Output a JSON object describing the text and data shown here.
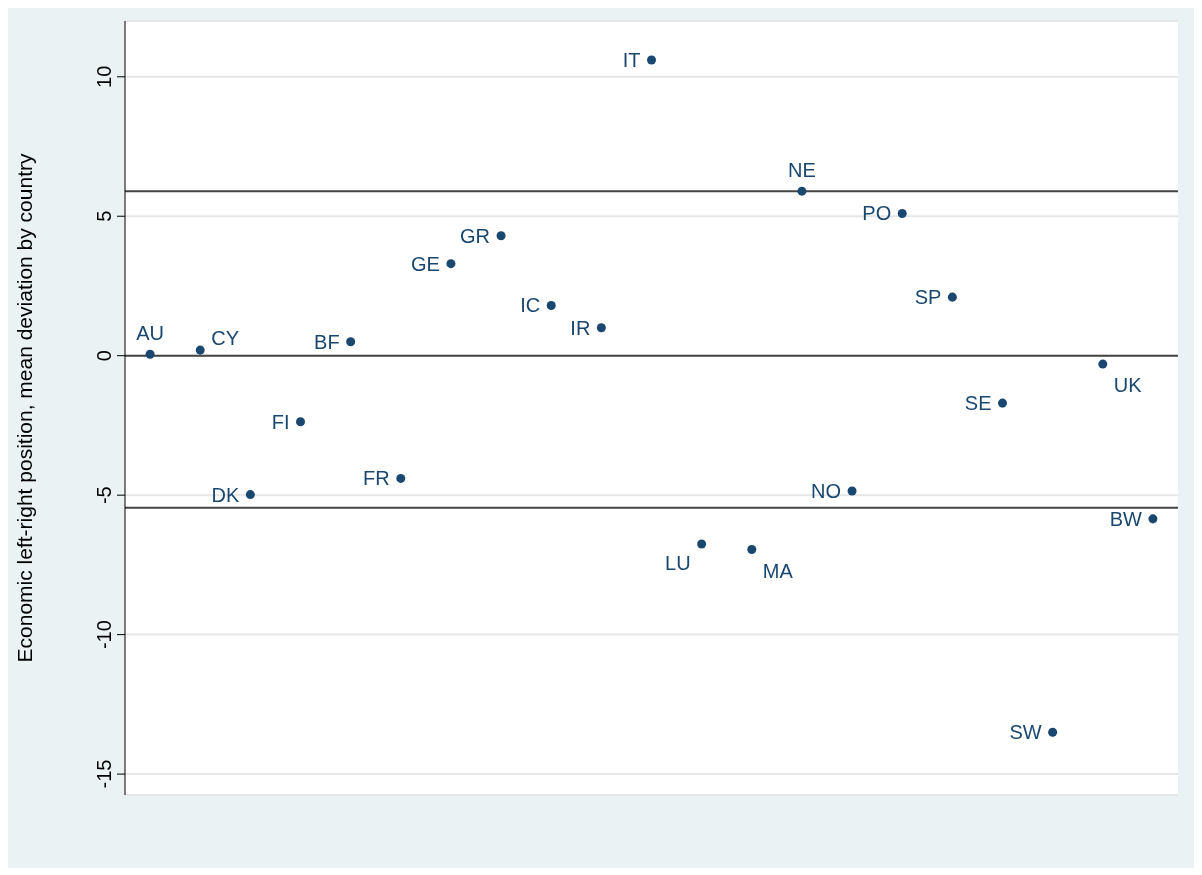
{
  "chart_data": {
    "type": "scatter",
    "ylabel": "Economic left-right position, mean deviation by country",
    "categories": [
      null,
      null,
      null,
      null,
      null,
      null,
      null,
      null,
      null,
      null,
      null,
      null,
      null,
      null,
      null,
      null,
      null,
      null,
      null,
      null,
      null
    ],
    "series": [
      {
        "color": "#1a476f",
        "values": [
          0.05,
          0.2,
          -4.98,
          -2.37,
          0.5,
          -4.4,
          3.3,
          4.3,
          1.8,
          1.0,
          10.6,
          -6.75,
          -6.95,
          5.9,
          -4.85,
          5.1,
          2.1,
          -1.7,
          -13.5,
          -0.3,
          -5.85
        ],
        "value_labels": [
          "AU",
          "CY",
          "DK",
          "FI",
          "BF",
          "FR",
          "GE",
          "GR",
          "IC",
          "IR",
          "IT",
          "LU",
          "MA",
          "NE",
          "NO",
          "PO",
          "SP",
          "SE",
          "SW",
          "UK",
          "BW"
        ]
      }
    ],
    "ylim": [
      -15.75,
      12
    ],
    "yticks": [
      -15,
      -10,
      -5,
      0,
      5,
      10
    ],
    "grid": "y",
    "marker": "circle",
    "legend": false,
    "ref_lines": [
      {
        "axis": "y",
        "value": 5.9,
        "color": "#444444"
      },
      {
        "axis": "y",
        "value": 0,
        "color": "#444444"
      },
      {
        "axis": "y",
        "value": -5.45,
        "color": "#444444"
      }
    ]
  }
}
